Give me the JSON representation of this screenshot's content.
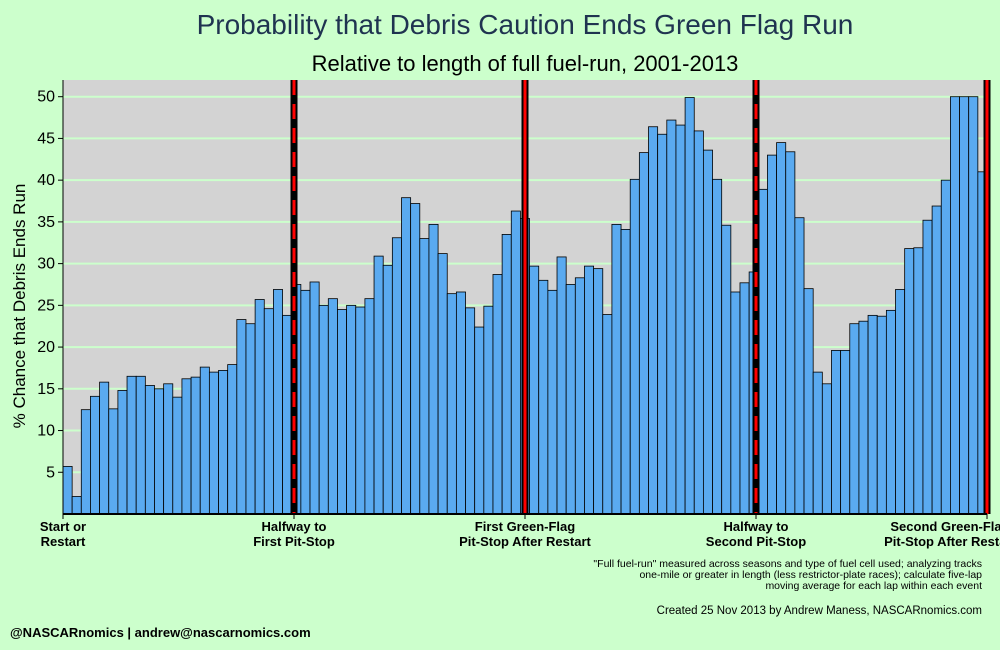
{
  "chart_data": {
    "type": "bar",
    "title": "Probability that Debris Caution Ends Green Flag Run",
    "subtitle": "Relative to length of full fuel-run, 2001-2013",
    "ylabel": "% Chance that Debris Ends Run",
    "ylim": [
      0,
      52
    ],
    "yticks": [
      5,
      10,
      15,
      20,
      25,
      30,
      35,
      40,
      45,
      50
    ],
    "xlim": [
      0,
      100
    ],
    "grid": true,
    "x_ticks": [
      {
        "x": 0,
        "lines": [
          "Start or",
          "Restart"
        ]
      },
      {
        "x": 25,
        "lines": [
          "Halfway to",
          "First Pit-Stop"
        ]
      },
      {
        "x": 50,
        "lines": [
          "First Green-Flag",
          "Pit-Stop After Restart"
        ]
      },
      {
        "x": 75,
        "lines": [
          "Halfway to",
          "Second Pit-Stop"
        ]
      },
      {
        "x": 100,
        "lines": [
          "Second Green-Flag",
          "Pit-Stop After Restart"
        ]
      }
    ],
    "markers": [
      {
        "x": 25,
        "style": "dashed"
      },
      {
        "x": 50,
        "style": "solid"
      },
      {
        "x": 75,
        "style": "dashed"
      },
      {
        "x": 100,
        "style": "solid"
      }
    ],
    "values": [
      5.7,
      2.1,
      12.5,
      14.1,
      15.8,
      12.6,
      14.8,
      16.5,
      16.5,
      15.4,
      15.0,
      15.6,
      14.0,
      16.2,
      16.4,
      17.6,
      17.0,
      17.2,
      17.9,
      23.3,
      22.8,
      25.7,
      24.6,
      26.9,
      23.8,
      27.5,
      26.8,
      27.8,
      25.0,
      25.8,
      24.5,
      25.0,
      24.8,
      25.8,
      30.9,
      29.8,
      33.1,
      37.9,
      37.2,
      33.0,
      34.7,
      31.2,
      26.4,
      26.6,
      24.7,
      22.4,
      24.9,
      28.7,
      33.5,
      36.3,
      35.4,
      29.7,
      28.0,
      26.8,
      30.8,
      27.5,
      28.3,
      29.7,
      29.4,
      23.9,
      34.7,
      34.1,
      40.1,
      43.3,
      46.4,
      45.5,
      47.2,
      46.6,
      49.9,
      45.9,
      43.6,
      40.1,
      34.6,
      26.6,
      27.7,
      29.0,
      38.9,
      43.0,
      44.5,
      43.4,
      35.5,
      27.0,
      17.0,
      15.6,
      19.6,
      19.6,
      22.8,
      23.1,
      23.8,
      23.7,
      24.4,
      26.9,
      31.8,
      31.9,
      35.2,
      36.9,
      40.0,
      50.0,
      50.0,
      50.0,
      41.0
    ],
    "bar_color": "#5aaaf0",
    "bar_edge_color": "#000000",
    "panel_color": "#d3d3d3",
    "gridline_color": "#ccffcc",
    "marker_color": "#ff0000",
    "notes": [
      "\"Full fuel-run\" measured across seasons and type of fuel cell used; analyzing tracks",
      "one-mile or greater in length (less restrictor-plate races); calculate five-lap",
      "moving average for each lap within each event"
    ],
    "credit": "Created 25 Nov 2013 by Andrew Maness, NASCARnomics.com",
    "footer": "@NASCARnomics | andrew@nascarnomics.com"
  }
}
